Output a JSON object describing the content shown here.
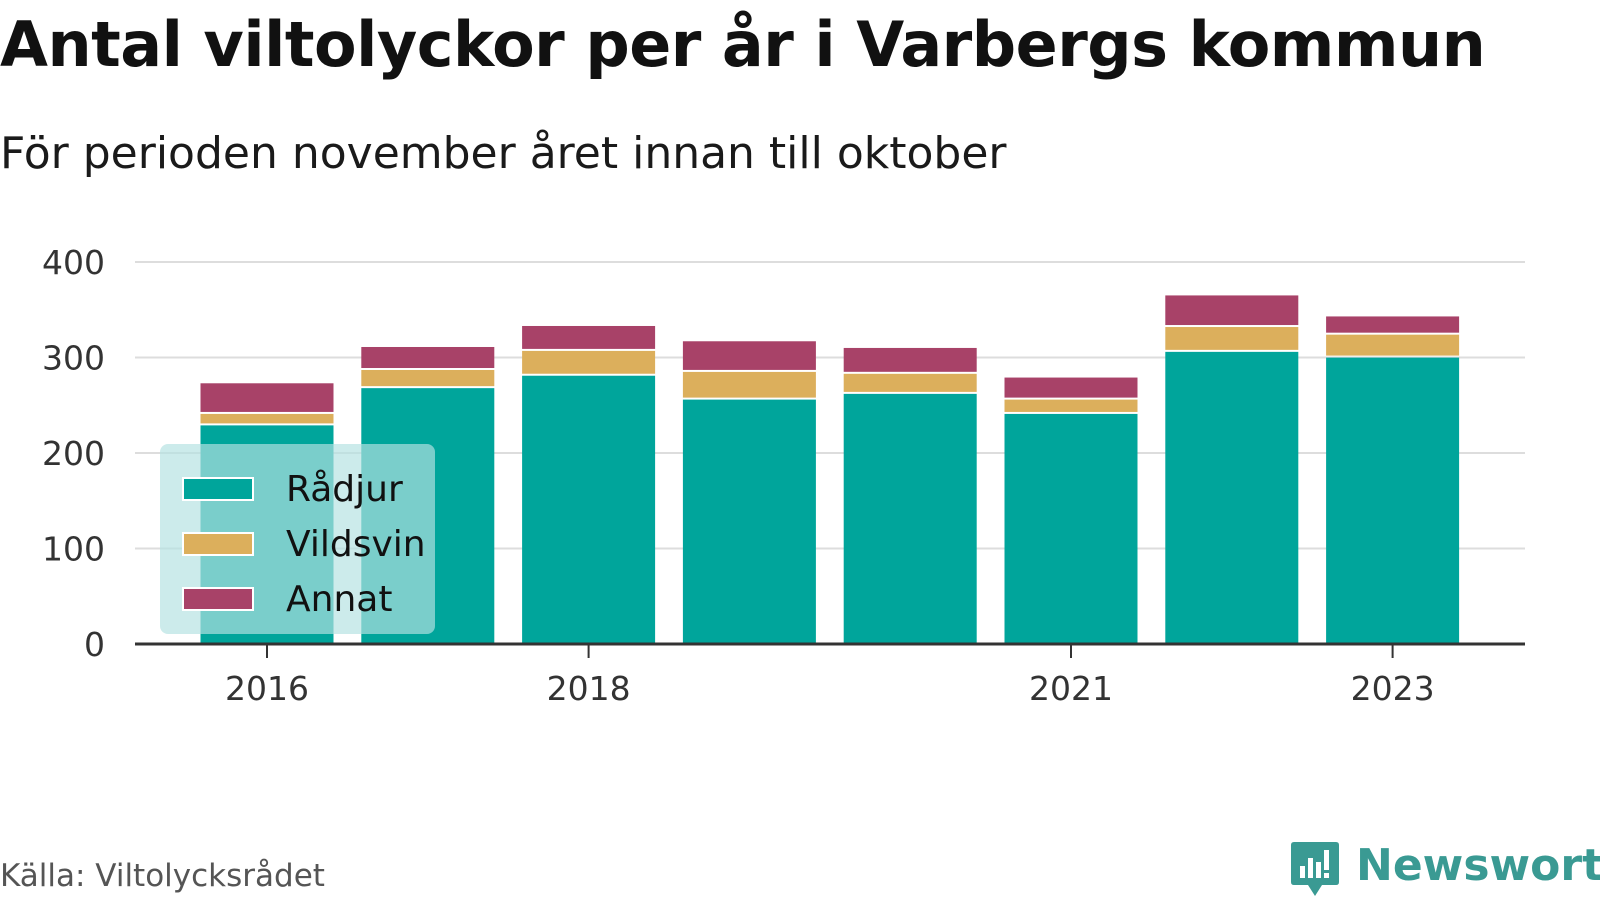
{
  "header": {
    "title": "Antal viltolyckor per år i Varbergs kommun",
    "subtitle": "För perioden november året innan till oktober"
  },
  "footer": {
    "source": "Källa: Viltolycksrådet",
    "brand": "Newsworthy"
  },
  "colors": {
    "radjur": "#00a59b",
    "vildsvin": "#dcaf5c",
    "annat": "#a84268",
    "grid": "#dddddd",
    "axis": "#333333"
  },
  "chart_data": {
    "type": "bar",
    "stacked": true,
    "x": [
      2016,
      2017,
      2018,
      2019,
      2020,
      2021,
      2022,
      2023
    ],
    "x_tick_labels": [
      "2016",
      "2018",
      "2021",
      "2023"
    ],
    "series": [
      {
        "name": "Rådjur",
        "values": [
          231,
          270,
          283,
          258,
          264,
          243,
          308,
          302
        ]
      },
      {
        "name": "Vildsvin",
        "values": [
          12,
          19,
          26,
          29,
          21,
          15,
          26,
          24
        ]
      },
      {
        "name": "Annat",
        "values": [
          30,
          22,
          24,
          30,
          25,
          21,
          31,
          17
        ]
      }
    ],
    "ylim": [
      0,
      400
    ],
    "y_ticks": [
      "0",
      "100",
      "200",
      "300",
      "400"
    ],
    "grid": true,
    "legend_position": "bottom-left"
  }
}
